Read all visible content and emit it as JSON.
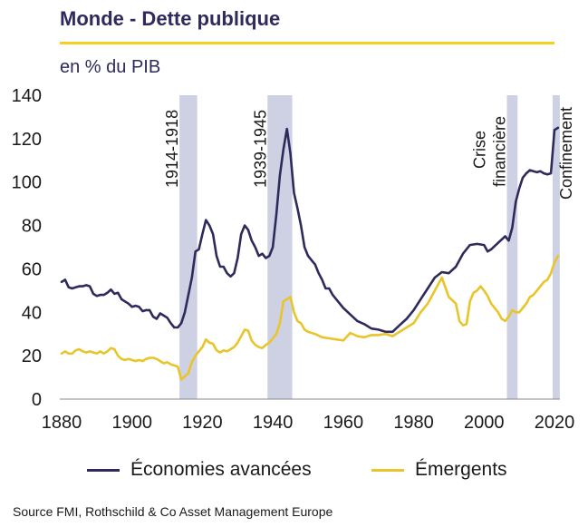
{
  "header": {
    "title": "Monde - Dette publique",
    "subtitle": "en % du PIB"
  },
  "footer": {
    "source": "Source FMI, Rothschild & Co Asset Management Europe"
  },
  "colors": {
    "advanced": "#2e2a5c",
    "emerging": "#e8c52a",
    "band": "#cdd1e3",
    "rule": "#f2d21e"
  },
  "chart_data": {
    "type": "line",
    "title": "Monde - Dette publique",
    "ylabel": "en % du PIB",
    "xlim": [
      1880,
      2021
    ],
    "ylim": [
      0,
      140
    ],
    "x_ticks": [
      1880,
      1900,
      1920,
      1940,
      1960,
      1980,
      2000,
      2020
    ],
    "y_ticks": [
      0,
      20,
      40,
      60,
      80,
      100,
      120,
      140
    ],
    "grid": false,
    "legend_position": "bottom",
    "bands": [
      {
        "label": "1914-1918",
        "start": 1914,
        "end": 1918
      },
      {
        "label": "1939-1945",
        "start": 1939,
        "end": 1945
      },
      {
        "label_lines": [
          "Crise",
          "financière"
        ],
        "start": 2007,
        "end": 2009
      },
      {
        "label": "Confinement",
        "start": 2020,
        "end": 2021
      }
    ],
    "series": [
      {
        "name": "Économies avancées",
        "points": [
          [
            1880,
            54
          ],
          [
            1881,
            55
          ],
          [
            1882,
            51.5
          ],
          [
            1883,
            51
          ],
          [
            1884,
            51.5
          ],
          [
            1885,
            52
          ],
          [
            1886,
            52
          ],
          [
            1887,
            52.5
          ],
          [
            1888,
            52
          ],
          [
            1889,
            48.5
          ],
          [
            1890,
            47.5
          ],
          [
            1891,
            48
          ],
          [
            1892,
            48
          ],
          [
            1893,
            49
          ],
          [
            1894,
            50.5
          ],
          [
            1895,
            48.5
          ],
          [
            1896,
            49
          ],
          [
            1897,
            46
          ],
          [
            1898,
            45
          ],
          [
            1899,
            44
          ],
          [
            1900,
            42.5
          ],
          [
            1901,
            43
          ],
          [
            1902,
            42.5
          ],
          [
            1903,
            40.5
          ],
          [
            1904,
            41
          ],
          [
            1905,
            41
          ],
          [
            1906,
            38
          ],
          [
            1907,
            37
          ],
          [
            1908,
            39.5
          ],
          [
            1909,
            38.5
          ],
          [
            1910,
            37.5
          ],
          [
            1911,
            35
          ],
          [
            1912,
            33
          ],
          [
            1913,
            33
          ],
          [
            1914,
            35
          ],
          [
            1915,
            40
          ],
          [
            1916,
            48
          ],
          [
            1917,
            56
          ],
          [
            1918,
            68
          ],
          [
            1919,
            69
          ],
          [
            1920,
            76
          ],
          [
            1921,
            82.5
          ],
          [
            1922,
            80
          ],
          [
            1923,
            76
          ],
          [
            1924,
            66
          ],
          [
            1925,
            61
          ],
          [
            1926,
            61
          ],
          [
            1927,
            58
          ],
          [
            1928,
            56.5
          ],
          [
            1929,
            58
          ],
          [
            1930,
            65
          ],
          [
            1931,
            76
          ],
          [
            1932,
            80
          ],
          [
            1933,
            78
          ],
          [
            1934,
            73
          ],
          [
            1935,
            70
          ],
          [
            1936,
            66
          ],
          [
            1937,
            67
          ],
          [
            1938,
            65
          ],
          [
            1939,
            66
          ],
          [
            1940,
            70
          ],
          [
            1941,
            85
          ],
          [
            1942,
            103
          ],
          [
            1943,
            115
          ],
          [
            1944,
            124.5
          ],
          [
            1945,
            113
          ],
          [
            1946,
            95
          ],
          [
            1947,
            88
          ],
          [
            1948,
            80
          ],
          [
            1949,
            70
          ],
          [
            1950,
            66
          ],
          [
            1951,
            64
          ],
          [
            1952,
            62
          ],
          [
            1953,
            58
          ],
          [
            1954,
            55
          ],
          [
            1955,
            51
          ],
          [
            1956,
            51
          ],
          [
            1957,
            48
          ],
          [
            1958,
            46
          ],
          [
            1959,
            44
          ],
          [
            1960,
            42
          ],
          [
            1962,
            39
          ],
          [
            1964,
            36
          ],
          [
            1966,
            34.5
          ],
          [
            1968,
            32.5
          ],
          [
            1970,
            32
          ],
          [
            1972,
            31
          ],
          [
            1974,
            31
          ],
          [
            1976,
            34
          ],
          [
            1978,
            37
          ],
          [
            1980,
            41
          ],
          [
            1982,
            46
          ],
          [
            1984,
            51
          ],
          [
            1986,
            56
          ],
          [
            1988,
            58.5
          ],
          [
            1990,
            58
          ],
          [
            1992,
            61
          ],
          [
            1994,
            67
          ],
          [
            1996,
            71
          ],
          [
            1998,
            71.5
          ],
          [
            2000,
            71
          ],
          [
            2001,
            68
          ],
          [
            2002,
            69
          ],
          [
            2004,
            72
          ],
          [
            2006,
            75
          ],
          [
            2007,
            73
          ],
          [
            2008,
            79
          ],
          [
            2009,
            91
          ],
          [
            2010,
            97
          ],
          [
            2011,
            102
          ],
          [
            2012,
            104
          ],
          [
            2013,
            105.5
          ],
          [
            2014,
            105
          ],
          [
            2015,
            104.5
          ],
          [
            2016,
            105
          ],
          [
            2017,
            104
          ],
          [
            2018,
            103.5
          ],
          [
            2019,
            104
          ],
          [
            2020,
            124
          ],
          [
            2021,
            125
          ]
        ]
      },
      {
        "name": "Émergents",
        "points": [
          [
            1880,
            21
          ],
          [
            1881,
            22
          ],
          [
            1882,
            21
          ],
          [
            1883,
            21
          ],
          [
            1884,
            22.5
          ],
          [
            1885,
            23
          ],
          [
            1886,
            22
          ],
          [
            1887,
            21.5
          ],
          [
            1888,
            22
          ],
          [
            1889,
            21.5
          ],
          [
            1890,
            21
          ],
          [
            1891,
            22
          ],
          [
            1892,
            21
          ],
          [
            1893,
            22
          ],
          [
            1894,
            23.5
          ],
          [
            1895,
            23
          ],
          [
            1896,
            20
          ],
          [
            1897,
            18.5
          ],
          [
            1898,
            18
          ],
          [
            1899,
            18.5
          ],
          [
            1900,
            18
          ],
          [
            1901,
            17.5
          ],
          [
            1902,
            18
          ],
          [
            1903,
            17.5
          ],
          [
            1904,
            18.5
          ],
          [
            1905,
            19
          ],
          [
            1906,
            19
          ],
          [
            1907,
            18.5
          ],
          [
            1908,
            17.5
          ],
          [
            1909,
            16.5
          ],
          [
            1910,
            17
          ],
          [
            1911,
            16
          ],
          [
            1912,
            15.5
          ],
          [
            1913,
            15
          ],
          [
            1914,
            9
          ],
          [
            1915,
            10.5
          ],
          [
            1916,
            12
          ],
          [
            1917,
            17
          ],
          [
            1918,
            20
          ],
          [
            1919,
            22
          ],
          [
            1920,
            24
          ],
          [
            1921,
            27.5
          ],
          [
            1922,
            26
          ],
          [
            1923,
            25.5
          ],
          [
            1924,
            22.5
          ],
          [
            1925,
            21.5
          ],
          [
            1926,
            22.5
          ],
          [
            1927,
            22
          ],
          [
            1928,
            23
          ],
          [
            1929,
            24
          ],
          [
            1930,
            26
          ],
          [
            1931,
            29
          ],
          [
            1932,
            32
          ],
          [
            1933,
            31.5
          ],
          [
            1934,
            27
          ],
          [
            1935,
            25
          ],
          [
            1936,
            24
          ],
          [
            1937,
            23.5
          ],
          [
            1938,
            25
          ],
          [
            1939,
            26
          ],
          [
            1940,
            28
          ],
          [
            1941,
            30
          ],
          [
            1942,
            35
          ],
          [
            1943,
            45
          ],
          [
            1944,
            46
          ],
          [
            1945,
            47
          ],
          [
            1946,
            40
          ],
          [
            1947,
            36
          ],
          [
            1948,
            35
          ],
          [
            1949,
            32
          ],
          [
            1950,
            31
          ],
          [
            1952,
            30
          ],
          [
            1954,
            28.5
          ],
          [
            1956,
            28
          ],
          [
            1958,
            27.5
          ],
          [
            1960,
            27
          ],
          [
            1962,
            30.5
          ],
          [
            1964,
            29
          ],
          [
            1966,
            28.5
          ],
          [
            1968,
            29.5
          ],
          [
            1970,
            29.5
          ],
          [
            1972,
            30
          ],
          [
            1974,
            29
          ],
          [
            1976,
            31
          ],
          [
            1978,
            33
          ],
          [
            1980,
            35
          ],
          [
            1982,
            40
          ],
          [
            1984,
            44
          ],
          [
            1986,
            50
          ],
          [
            1988,
            56
          ],
          [
            1990,
            47
          ],
          [
            1992,
            44
          ],
          [
            1993,
            36
          ],
          [
            1994,
            34
          ],
          [
            1995,
            34.5
          ],
          [
            1996,
            45
          ],
          [
            1997,
            49
          ],
          [
            1998,
            50
          ],
          [
            1999,
            52
          ],
          [
            2000,
            50
          ],
          [
            2001,
            47.5
          ],
          [
            2002,
            44
          ],
          [
            2004,
            40
          ],
          [
            2005,
            37
          ],
          [
            2006,
            36
          ],
          [
            2007,
            38
          ],
          [
            2008,
            41
          ],
          [
            2009,
            40
          ],
          [
            2010,
            40
          ],
          [
            2011,
            42
          ],
          [
            2012,
            44
          ],
          [
            2013,
            47
          ],
          [
            2014,
            48
          ],
          [
            2015,
            50
          ],
          [
            2016,
            52
          ],
          [
            2017,
            54
          ],
          [
            2018,
            55
          ],
          [
            2019,
            58
          ],
          [
            2020,
            63
          ],
          [
            2021,
            66
          ]
        ]
      }
    ]
  }
}
